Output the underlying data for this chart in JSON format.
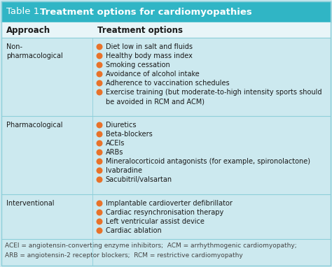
{
  "title_prefix": "Table 1. ",
  "title_bold": "Treatment options for cardiomyopathies",
  "header_bg": "#30b5c5",
  "table_bg": "#cce9ef",
  "footnote_bg": "#cce9ef",
  "col_header_bg": "#e8f5f8",
  "row_divider_color": "#8ecfda",
  "col_header_divider": "#8ecfda",
  "col1_header": "Approach",
  "col2_header": "Treatment options",
  "body_text_color": "#1a1a1a",
  "bullet_color": "#e8722a",
  "title_text_color": "#ffffff",
  "footnote_color": "#444444",
  "rows": [
    {
      "approach": "Non-\npharmacological",
      "items": [
        "Diet low in salt and fluids",
        "Healthy body mass index",
        "Smoking cessation",
        "Avoidance of alcohol intake",
        "Adherence to vaccination schedules",
        "Exercise training (but moderate-to-high intensity sports should",
        "  be avoided in RCM and ACM)"
      ]
    },
    {
      "approach": "Pharmacological",
      "items": [
        "Diuretics",
        "Beta-blockers",
        "ACEIs",
        "ARBs",
        "Mineralocorticoid antagonists (for example, spironolactone)",
        "Ivabradine",
        "Sacubitril/valsartan"
      ]
    },
    {
      "approach": "Interventional",
      "items": [
        "Implantable cardioverter defibrillator",
        "Cardiac resynchronisation therapy",
        "Left ventricular assist device",
        "Cardiac ablation"
      ]
    }
  ],
  "footnote_lines": [
    "ACEI = angiotensin-converting enzyme inhibitors;  ACM = arrhythmogenic cardiomyopathy;",
    "ARB = angiotensin-2 receptor blockers;  RCM = restrictive cardiomyopathy"
  ]
}
